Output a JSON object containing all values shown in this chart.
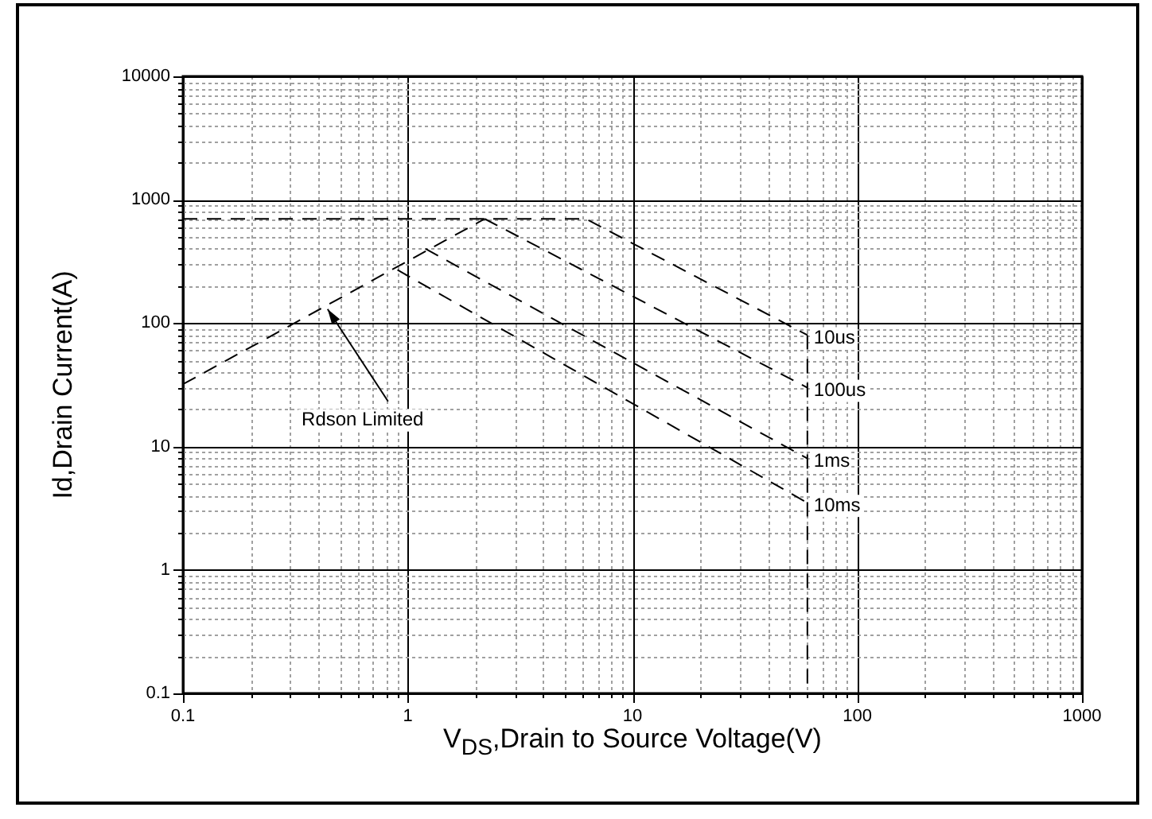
{
  "chart_data": {
    "type": "line",
    "xlabel": "V$_{DS}$,Drain to Source Voltage(V)",
    "ylabel": "Id,Drain Current(A)",
    "log": "xy",
    "grid": true,
    "marker": "none",
    "line_style": "dashed",
    "xlim": [
      0.1,
      1000
    ],
    "ylim": [
      0.1,
      10000
    ],
    "xticks": [
      0.1,
      {
        "value": 0.2,
        "label": null
      },
      {
        "value": 0.3,
        "label": null
      },
      {
        "value": 0.4,
        "label": null
      },
      {
        "value": 0.5,
        "label": null
      },
      {
        "value": 0.6,
        "label": null
      },
      {
        "value": 0.7,
        "label": null
      },
      {
        "value": 0.8,
        "label": null
      },
      {
        "value": 0.9,
        "label": null
      },
      1,
      {
        "value": 2,
        "label": null
      },
      {
        "value": 3,
        "label": null
      },
      {
        "value": 4,
        "label": null
      },
      {
        "value": 5,
        "label": null
      },
      {
        "value": 6,
        "label": null
      },
      {
        "value": 7,
        "label": null
      },
      {
        "value": 8,
        "label": null
      },
      {
        "value": 9,
        "label": null
      },
      10,
      {
        "value": 20,
        "label": null
      },
      {
        "value": 30,
        "label": null
      },
      {
        "value": 40,
        "label": null
      },
      {
        "value": 50,
        "label": null
      },
      {
        "value": 60,
        "label": null
      },
      {
        "value": 70,
        "label": null
      },
      {
        "value": 80,
        "label": null
      },
      {
        "value": 90,
        "label": null
      },
      100,
      {
        "value": 200,
        "label": null
      },
      {
        "value": 300,
        "label": null
      },
      {
        "value": 400,
        "label": null
      },
      {
        "value": 500,
        "label": null
      },
      {
        "value": 600,
        "label": null
      },
      {
        "value": 700,
        "label": null
      },
      {
        "value": 800,
        "label": null
      },
      {
        "value": 900,
        "label": null
      },
      1000
    ],
    "yticks": [
      0.1,
      {
        "value": 0.2,
        "label": null
      },
      {
        "value": 0.3,
        "label": null
      },
      {
        "value": 0.4,
        "label": null
      },
      {
        "value": 0.5,
        "label": null
      },
      {
        "value": 0.6,
        "label": null
      },
      {
        "value": 0.7,
        "label": null
      },
      {
        "value": 0.8,
        "label": null
      },
      {
        "value": 0.9,
        "label": null
      },
      1,
      {
        "value": 2,
        "label": null
      },
      {
        "value": 3,
        "label": null
      },
      {
        "value": 4,
        "label": null
      },
      {
        "value": 5,
        "label": null
      },
      {
        "value": 6,
        "label": null
      },
      {
        "value": 7,
        "label": null
      },
      {
        "value": 8,
        "label": null
      },
      {
        "value": 9,
        "label": null
      },
      10,
      {
        "value": 20,
        "label": null
      },
      {
        "value": 30,
        "label": null
      },
      {
        "value": 40,
        "label": null
      },
      {
        "value": 50,
        "label": null
      },
      {
        "value": 60,
        "label": null
      },
      {
        "value": 70,
        "label": null
      },
      {
        "value": 80,
        "label": null
      },
      {
        "value": 90,
        "label": null
      },
      100,
      {
        "value": 200,
        "label": null
      },
      {
        "value": 300,
        "label": null
      },
      {
        "value": 400,
        "label": null
      },
      {
        "value": 500,
        "label": null
      },
      {
        "value": 600,
        "label": null
      },
      {
        "value": 700,
        "label": null
      },
      {
        "value": 800,
        "label": null
      },
      {
        "value": 900,
        "label": null
      },
      1000,
      {
        "value": 2000,
        "label": null
      },
      {
        "value": 3000,
        "label": null
      },
      {
        "value": 4000,
        "label": null
      },
      {
        "value": 5000,
        "label": null
      },
      {
        "value": 6000,
        "label": null
      },
      {
        "value": 7000,
        "label": null
      },
      {
        "value": 8000,
        "label": null
      },
      {
        "value": 9000,
        "label": null
      },
      10000
    ],
    "series": [
      {
        "color": "#000000",
        "x": [
          0.1,
          2.2
        ],
        "values": [
          32,
          700
        ]
      },
      {
        "name": "10us",
        "color": "#000000",
        "x": [
          0.1,
          6.2,
          60
        ],
        "values": [
          700,
          700,
          80
        ]
      },
      {
        "color": "#000000",
        "x": [
          60,
          60
        ],
        "values": [
          80,
          0.1
        ]
      },
      {
        "name": "100us",
        "color": "#000000",
        "x": [
          2.2,
          60
        ],
        "values": [
          700,
          30
        ]
      },
      {
        "name": "1ms",
        "color": "#000000",
        "x": [
          1.2,
          60
        ],
        "values": [
          400,
          8
        ]
      },
      {
        "name": "10ms",
        "color": "#000000",
        "x": [
          0.9,
          60
        ],
        "values": [
          270,
          3.5
        ]
      }
    ],
    "annotations": [
      {
        "text": "Rdson Limited",
        "x": 0.44,
        "y": 130
      }
    ]
  }
}
